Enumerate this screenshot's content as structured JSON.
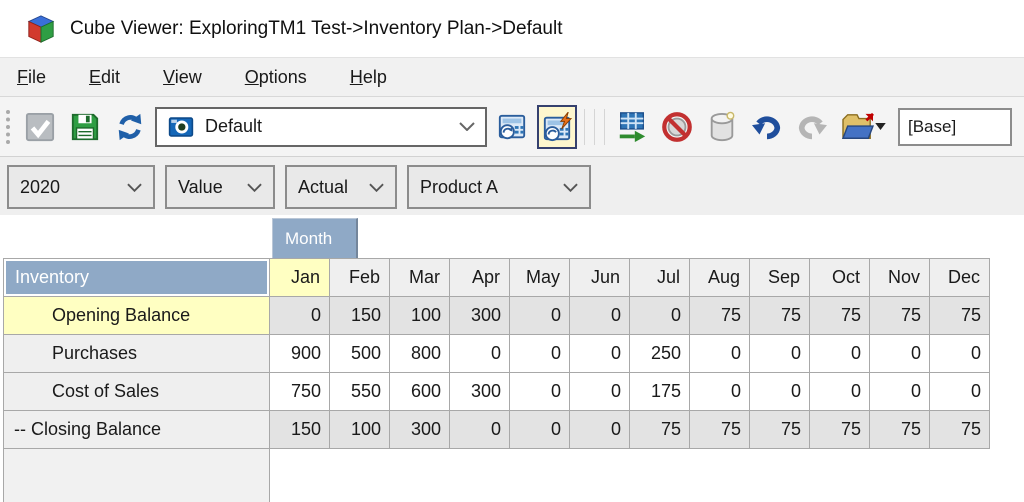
{
  "window": {
    "title": "Cube Viewer: ExploringTM1 Test->Inventory Plan->Default",
    "icon": "cube-icon"
  },
  "menu": {
    "items": [
      {
        "label": "File"
      },
      {
        "label": "Edit"
      },
      {
        "label": "View"
      },
      {
        "label": "Options"
      },
      {
        "label": "Help"
      }
    ]
  },
  "toolbar": {
    "view_dropdown": {
      "value": "Default",
      "icon": "view-icon"
    },
    "base_field": {
      "value": "[Base]"
    },
    "icons": [
      "commit-check-icon",
      "save-icon",
      "refresh-icon",
      "view-icon",
      "recalculate-icon",
      "auto-recalculate-icon",
      "slice-to-excel-icon",
      "suppress-zeroes-icon",
      "sandbox-icon",
      "undo-icon",
      "redo-icon",
      "export-folder-icon",
      "chevron-down-icon"
    ],
    "active_toggle": "auto-recalculate"
  },
  "dimensions": {
    "dropdowns": [
      {
        "value": "2020"
      },
      {
        "value": "Value"
      },
      {
        "value": "Actual"
      },
      {
        "value": "Product A"
      }
    ]
  },
  "grid": {
    "column_dimension": "Month",
    "row_dimension": "Inventory",
    "columns": [
      "Jan",
      "Feb",
      "Mar",
      "Apr",
      "May",
      "Jun",
      "Jul",
      "Aug",
      "Sep",
      "Oct",
      "Nov",
      "Dec"
    ],
    "selected_column": "Jan",
    "selected_row": "Opening Balance",
    "rows": [
      {
        "label": "Opening Balance",
        "indented": true,
        "readonly": true,
        "selected": true,
        "values": [
          0,
          150,
          100,
          300,
          0,
          0,
          0,
          75,
          75,
          75,
          75,
          75
        ]
      },
      {
        "label": "Purchases",
        "indented": true,
        "readonly": false,
        "selected": false,
        "values": [
          900,
          500,
          800,
          0,
          0,
          0,
          250,
          0,
          0,
          0,
          0,
          0
        ]
      },
      {
        "label": "Cost of Sales",
        "indented": true,
        "readonly": false,
        "selected": false,
        "values": [
          750,
          550,
          600,
          300,
          0,
          0,
          175,
          0,
          0,
          0,
          0,
          0
        ]
      },
      {
        "label": "-- Closing Balance",
        "indented": false,
        "readonly": true,
        "selected": false,
        "values": [
          150,
          100,
          300,
          0,
          0,
          0,
          75,
          75,
          75,
          75,
          75,
          75
        ]
      }
    ]
  },
  "colors": {
    "header_blue": "#8fa9c6",
    "highlight_yellow": "#ffffc2",
    "readonly_gray": "#e3e3e3",
    "header_gray": "#efefef",
    "toolbar_active_bg": "#fdf6ce",
    "toolbar_active_border": "#35406e"
  }
}
